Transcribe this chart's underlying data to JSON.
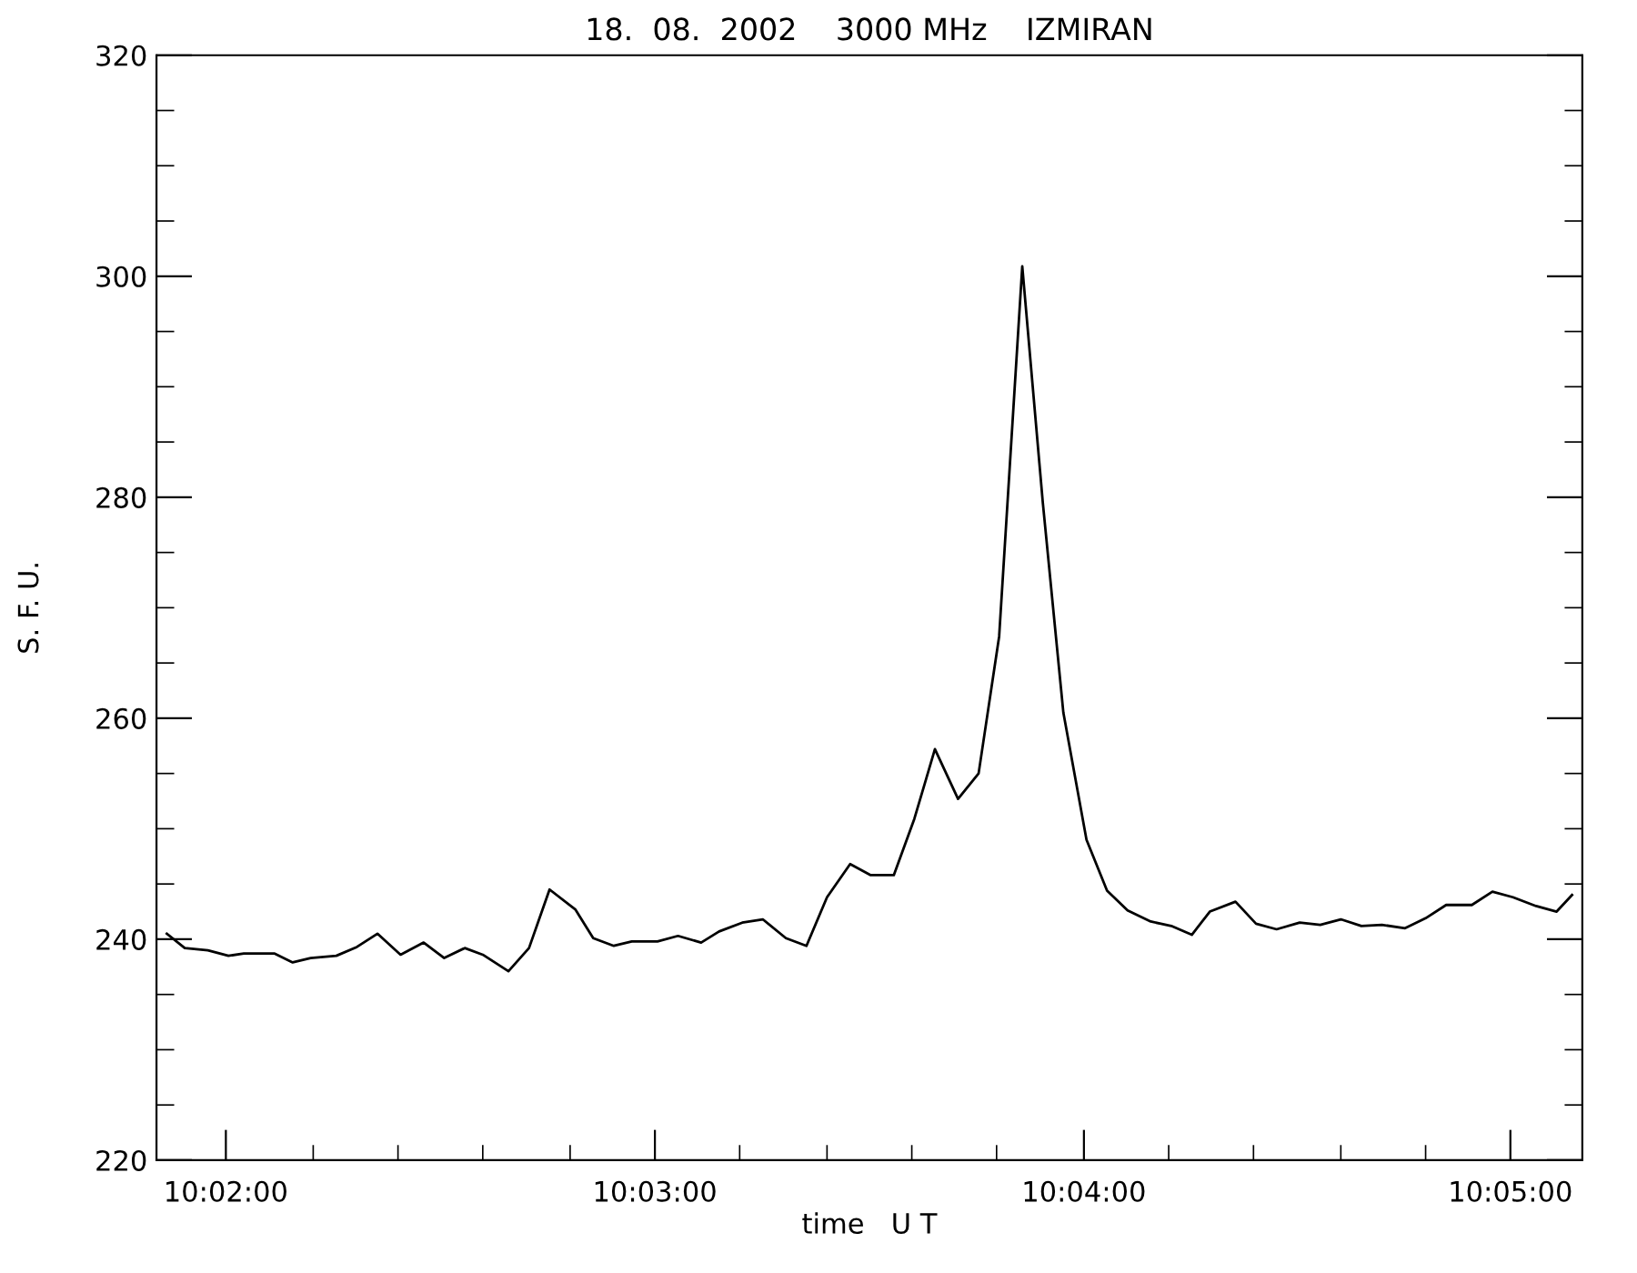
{
  "chart_data": {
    "type": "line",
    "title": "18.  08.  2002    3000 MHz    IZMIRAN",
    "xlabel": "time   U T",
    "ylabel": "S. F. U.",
    "x": [
      10.031,
      10.0317,
      10.0326,
      10.0334,
      10.034,
      10.0352,
      10.0359,
      10.0366,
      10.0376,
      10.0384,
      10.0392,
      10.0401,
      10.041,
      10.0418,
      10.0426,
      10.0433,
      10.0443,
      10.0451,
      10.0459,
      10.0469,
      10.0476,
      10.0484,
      10.0491,
      10.0501,
      10.0509,
      10.0518,
      10.0525,
      10.0534,
      10.0542,
      10.0551,
      10.0559,
      10.0567,
      10.0576,
      10.0584,
      10.0593,
      10.0601,
      10.0609,
      10.0618,
      10.0626,
      10.0634,
      10.0643,
      10.0651,
      10.0659,
      10.0668,
      10.0676,
      10.0684,
      10.0693,
      10.0701,
      10.0709,
      10.0716,
      10.0726,
      10.0734,
      10.0742,
      10.0751,
      10.0759,
      10.0767,
      10.0775,
      10.0783,
      10.0792,
      10.08,
      10.0808,
      10.0818,
      10.0826,
      10.0834,
      10.0843,
      10.0851,
      10.0857
    ],
    "series": [
      {
        "color": "#000000",
        "values": [
          240.5,
          239.2,
          239.0,
          238.5,
          238.7,
          238.7,
          237.9,
          238.3,
          238.5,
          239.3,
          240.5,
          238.6,
          239.7,
          238.3,
          239.2,
          238.6,
          237.1,
          239.2,
          244.5,
          242.7,
          240.1,
          239.4,
          239.8,
          239.8,
          240.3,
          239.7,
          240.7,
          241.5,
          241.8,
          240.1,
          239.4,
          243.8,
          246.8,
          245.8,
          245.8,
          250.9,
          257.2,
          252.7,
          255.0,
          267.4,
          300.9,
          279.5,
          260.5,
          249.0,
          244.4,
          242.6,
          241.6,
          241.2,
          240.4,
          242.5,
          243.4,
          241.4,
          240.9,
          241.5,
          241.3,
          241.8,
          241.2,
          241.3,
          241.0,
          241.9,
          243.1,
          243.1,
          244.3,
          243.8,
          243.0,
          242.5,
          244.0
        ]
      }
    ],
    "xlim": [
      10.0306,
      10.0861
    ],
    "xticks": [
      {
        "value": 10.0333,
        "label": "10:02:00"
      },
      {
        "value": 10.0367,
        "label": null
      },
      {
        "value": 10.04,
        "label": null
      },
      {
        "value": 10.0433,
        "label": null
      },
      {
        "value": 10.0467,
        "label": null
      },
      {
        "value": 10.05,
        "label": "10:03:00"
      },
      {
        "value": 10.0533,
        "label": null
      },
      {
        "value": 10.0567,
        "label": null
      },
      {
        "value": 10.06,
        "label": null
      },
      {
        "value": 10.0633,
        "label": null
      },
      {
        "value": 10.0667,
        "label": "10:04:00"
      },
      {
        "value": 10.07,
        "label": null
      },
      {
        "value": 10.0733,
        "label": null
      },
      {
        "value": 10.0767,
        "label": null
      },
      {
        "value": 10.08,
        "label": null
      },
      {
        "value": 10.0833,
        "label": "10:05:00"
      }
    ],
    "ylim": [
      220,
      320
    ],
    "yticks": [
      220,
      {
        "value": 225,
        "label": null
      },
      {
        "value": 230,
        "label": null
      },
      {
        "value": 235,
        "label": null
      },
      240,
      {
        "value": 245,
        "label": null
      },
      {
        "value": 250,
        "label": null
      },
      {
        "value": 255,
        "label": null
      },
      260,
      {
        "value": 265,
        "label": null
      },
      {
        "value": 270,
        "label": null
      },
      {
        "value": 275,
        "label": null
      },
      280,
      {
        "value": 285,
        "label": null
      },
      {
        "value": 290,
        "label": null
      },
      {
        "value": 295,
        "label": null
      },
      300,
      {
        "value": 305,
        "label": null
      },
      {
        "value": 310,
        "label": null
      },
      {
        "value": 315,
        "label": null
      },
      320
    ],
    "grid": false,
    "legend": false,
    "marker": "none",
    "line_style": "solid"
  }
}
